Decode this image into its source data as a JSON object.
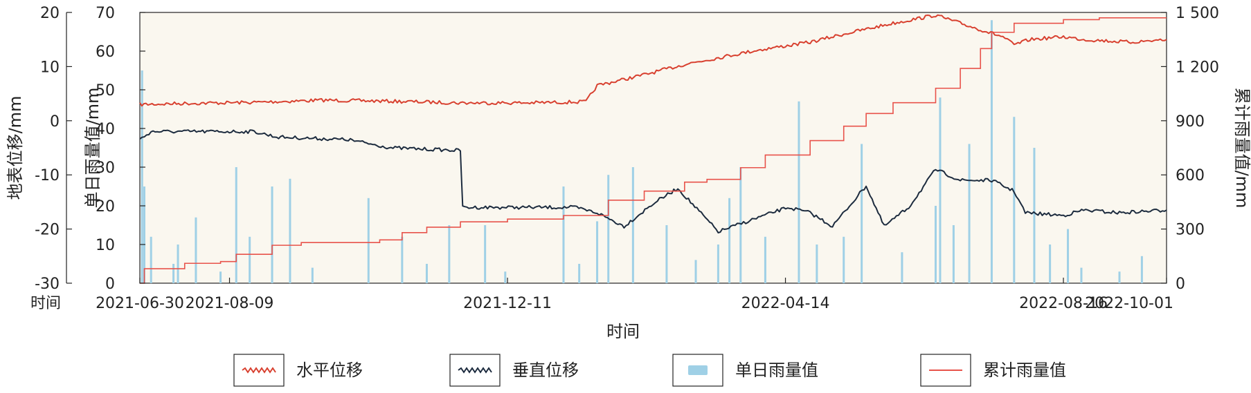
{
  "chart_data": {
    "type": "line",
    "x_tick_labels": [
      "2021-06-30",
      "2021-08-09",
      "2021-12-11",
      "2022-04-14",
      "2022-08-16",
      "2022-10-01"
    ],
    "x_range": [
      "2021-06-30",
      "2022-10-01"
    ],
    "xlabel": "时间",
    "x_corner_label": "时间",
    "axes": {
      "displacement": {
        "label": "地表位移/mm",
        "range": [
          -30,
          20
        ],
        "ticks": [
          "-30",
          "-20",
          "-10",
          "0",
          "10",
          "20"
        ]
      },
      "daily_rain": {
        "label": "单日雨量值/mm",
        "range": [
          0,
          70
        ],
        "ticks": [
          "0",
          "10",
          "20",
          "30",
          "40",
          "50",
          "60",
          "70"
        ]
      },
      "cumulative_rain": {
        "label": "累计雨量值/mm",
        "range": [
          0,
          1500
        ],
        "ticks": [
          "0",
          "300",
          "600",
          "900",
          "1 200",
          "1 500"
        ]
      }
    },
    "grid": false,
    "legend_position": "bottom",
    "series": [
      {
        "name": "水平位移",
        "axis": "displacement",
        "color": "#d8402f",
        "style": "jagged",
        "points": [
          [
            "2021-06-30",
            3.0
          ],
          [
            "2021-07-20",
            3.2
          ],
          [
            "2021-08-20",
            3.4
          ],
          [
            "2021-09-20",
            3.8
          ],
          [
            "2021-10-20",
            3.6
          ],
          [
            "2021-11-20",
            3.3
          ],
          [
            "2021-12-20",
            3.3
          ],
          [
            "2022-01-15",
            3.5
          ],
          [
            "2022-01-20",
            6.5
          ],
          [
            "2022-02-10",
            8.5
          ],
          [
            "2022-03-01",
            10.5
          ],
          [
            "2022-04-01",
            13.0
          ],
          [
            "2022-04-25",
            14.5
          ],
          [
            "2022-05-10",
            16.0
          ],
          [
            "2022-06-01",
            18.0
          ],
          [
            "2022-06-20",
            19.5
          ],
          [
            "2022-07-01",
            18.0
          ],
          [
            "2022-07-20",
            15.5
          ],
          [
            "2022-07-25",
            14.0
          ],
          [
            "2022-08-01",
            15.0
          ],
          [
            "2022-08-16",
            15.5
          ],
          [
            "2022-08-25",
            15.0
          ],
          [
            "2022-09-15",
            14.5
          ],
          [
            "2022-10-01",
            15.0
          ]
        ]
      },
      {
        "name": "垂直位移",
        "axis": "displacement",
        "color": "#1c2b3e",
        "style": "jagged",
        "points": [
          [
            "2021-06-30",
            -3.5
          ],
          [
            "2021-07-05",
            -2.0
          ],
          [
            "2021-08-20",
            -2.0
          ],
          [
            "2021-08-30",
            -3.0
          ],
          [
            "2021-10-01",
            -3.5
          ],
          [
            "2021-10-20",
            -5.0
          ],
          [
            "2021-11-20",
            -5.5
          ],
          [
            "2021-11-21",
            -16.0
          ],
          [
            "2022-01-10",
            -16.0
          ],
          [
            "2022-01-20",
            -17.0
          ],
          [
            "2022-02-01",
            -19.5
          ],
          [
            "2022-02-15",
            -15.0
          ],
          [
            "2022-02-25",
            -12.5
          ],
          [
            "2022-03-15",
            -20.5
          ],
          [
            "2022-04-01",
            -18.0
          ],
          [
            "2022-04-15",
            -16.0
          ],
          [
            "2022-04-25",
            -17.0
          ],
          [
            "2022-05-05",
            -19.5
          ],
          [
            "2022-05-20",
            -12.0
          ],
          [
            "2022-05-28",
            -19.5
          ],
          [
            "2022-06-08",
            -16.0
          ],
          [
            "2022-06-20",
            -9.0
          ],
          [
            "2022-07-01",
            -11.0
          ],
          [
            "2022-07-15",
            -11.0
          ],
          [
            "2022-07-25",
            -13.0
          ],
          [
            "2022-07-30",
            -17.0
          ],
          [
            "2022-08-16",
            -17.5
          ],
          [
            "2022-08-25",
            -16.5
          ],
          [
            "2022-09-10",
            -17.0
          ],
          [
            "2022-10-01",
            -16.5
          ]
        ]
      },
      {
        "name": "单日雨量值",
        "axis": "daily_rain",
        "color": "#9fd0e6",
        "style": "bar",
        "points": [
          [
            "2021-07-01",
            55
          ],
          [
            "2021-07-02",
            25
          ],
          [
            "2021-07-05",
            12
          ],
          [
            "2021-07-15",
            5
          ],
          [
            "2021-07-17",
            10
          ],
          [
            "2021-07-25",
            17
          ],
          [
            "2021-08-05",
            3
          ],
          [
            "2021-08-12",
            30
          ],
          [
            "2021-08-18",
            12
          ],
          [
            "2021-08-28",
            25
          ],
          [
            "2021-09-05",
            27
          ],
          [
            "2021-09-15",
            4
          ],
          [
            "2021-10-10",
            22
          ],
          [
            "2021-10-25",
            12
          ],
          [
            "2021-11-05",
            5
          ],
          [
            "2021-11-15",
            15
          ],
          [
            "2021-12-01",
            15
          ],
          [
            "2021-12-10",
            3
          ],
          [
            "2022-01-05",
            25
          ],
          [
            "2022-01-12",
            5
          ],
          [
            "2022-01-20",
            16
          ],
          [
            "2022-01-25",
            28
          ],
          [
            "2022-02-05",
            30
          ],
          [
            "2022-02-20",
            15
          ],
          [
            "2022-03-05",
            6
          ],
          [
            "2022-03-15",
            10
          ],
          [
            "2022-03-20",
            22
          ],
          [
            "2022-03-25",
            30
          ],
          [
            "2022-04-05",
            12
          ],
          [
            "2022-04-20",
            47
          ],
          [
            "2022-04-28",
            10
          ],
          [
            "2022-05-10",
            12
          ],
          [
            "2022-05-18",
            36
          ],
          [
            "2022-06-05",
            8
          ],
          [
            "2022-06-20",
            20
          ],
          [
            "2022-06-22",
            48
          ],
          [
            "2022-06-28",
            15
          ],
          [
            "2022-07-05",
            36
          ],
          [
            "2022-07-15",
            68
          ],
          [
            "2022-07-25",
            43
          ],
          [
            "2022-08-03",
            35
          ],
          [
            "2022-08-10",
            10
          ],
          [
            "2022-08-18",
            14
          ],
          [
            "2022-08-24",
            4
          ],
          [
            "2022-09-10",
            3
          ],
          [
            "2022-09-20",
            7
          ]
        ]
      },
      {
        "name": "累计雨量值",
        "axis": "cumulative_rain",
        "color": "#e8524a",
        "style": "step",
        "points": [
          [
            "2021-06-30",
            0
          ],
          [
            "2021-07-02",
            80
          ],
          [
            "2021-07-20",
            110
          ],
          [
            "2021-08-05",
            120
          ],
          [
            "2021-08-12",
            160
          ],
          [
            "2021-08-28",
            210
          ],
          [
            "2021-09-10",
            225
          ],
          [
            "2021-10-15",
            240
          ],
          [
            "2021-10-25",
            280
          ],
          [
            "2021-11-05",
            310
          ],
          [
            "2021-11-20",
            340
          ],
          [
            "2021-12-11",
            355
          ],
          [
            "2022-01-05",
            375
          ],
          [
            "2022-01-25",
            460
          ],
          [
            "2022-02-10",
            510
          ],
          [
            "2022-02-28",
            560
          ],
          [
            "2022-03-10",
            575
          ],
          [
            "2022-03-25",
            640
          ],
          [
            "2022-04-05",
            710
          ],
          [
            "2022-04-25",
            790
          ],
          [
            "2022-05-10",
            870
          ],
          [
            "2022-05-20",
            940
          ],
          [
            "2022-06-01",
            1000
          ],
          [
            "2022-06-20",
            1080
          ],
          [
            "2022-07-01",
            1190
          ],
          [
            "2022-07-10",
            1300
          ],
          [
            "2022-07-15",
            1390
          ],
          [
            "2022-07-25",
            1440
          ],
          [
            "2022-08-16",
            1460
          ],
          [
            "2022-09-01",
            1470
          ],
          [
            "2022-10-01",
            1470
          ]
        ]
      }
    ]
  }
}
